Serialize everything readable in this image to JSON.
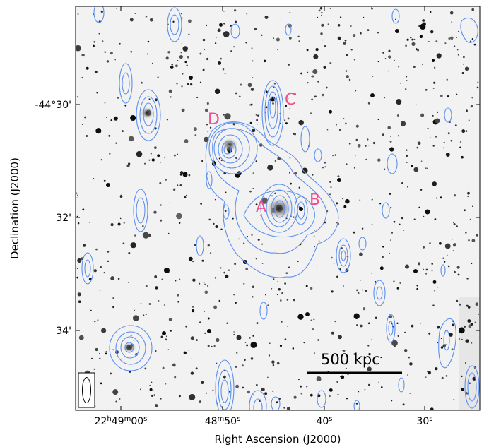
{
  "axes": {
    "xlabel": "Right Ascension (J2000)",
    "ylabel": "Declination (J2000)",
    "x_ticks": [
      {
        "label": "22h49m00s"
      },
      {
        "label": "48m50s"
      },
      {
        "label": "40s"
      },
      {
        "label": "30s"
      }
    ],
    "y_ticks": [
      {
        "label": "-44°30'"
      },
      {
        "label": "32'"
      },
      {
        "label": "34'"
      }
    ]
  },
  "labels": {
    "A": "A",
    "B": "B",
    "C": "C",
    "D": "D"
  },
  "scale_bar": {
    "label": "500 kpc"
  },
  "colors": {
    "contour": "#5b8ff0",
    "label": "#ef4f8f",
    "background": "#f2f2f2",
    "star": "#0d0d0d"
  }
}
